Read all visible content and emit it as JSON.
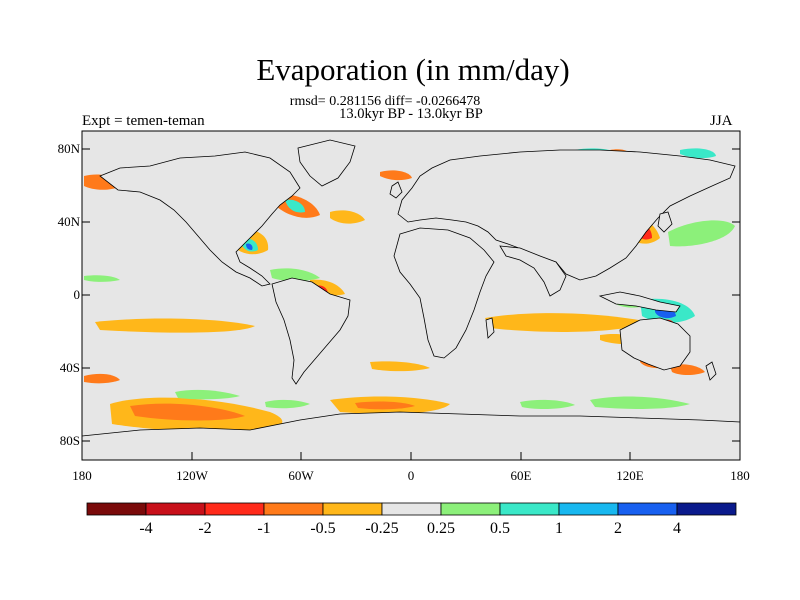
{
  "title": "Evaporation (in mm/day)",
  "stats_line": "rmsd= 0.281156 diff= -0.0266478",
  "subtitle": "13.0kyr BP - 13.0kyr BP",
  "experiment": "Expt = temen-teman",
  "season": "JJA",
  "y_ticks": [
    "80N",
    "40N",
    "0",
    "40S",
    "80S"
  ],
  "x_ticks": [
    "180",
    "120W",
    "60W",
    "0",
    "60E",
    "120E",
    "180"
  ],
  "colorbar": {
    "labels": [
      "-4",
      "-2",
      "-1",
      "-0.5",
      "-0.25",
      "0.25",
      "0.5",
      "1",
      "2",
      "4"
    ],
    "colors": [
      "#7a0a0a",
      "#c8101a",
      "#ff2a1a",
      "#ff7a1a",
      "#ffb71a",
      "#e6e6e6",
      "#8cf07a",
      "#3ae8c8",
      "#18b8f0",
      "#1860f0",
      "#0a1a8c"
    ]
  },
  "map_background": "#e6e6e6"
}
